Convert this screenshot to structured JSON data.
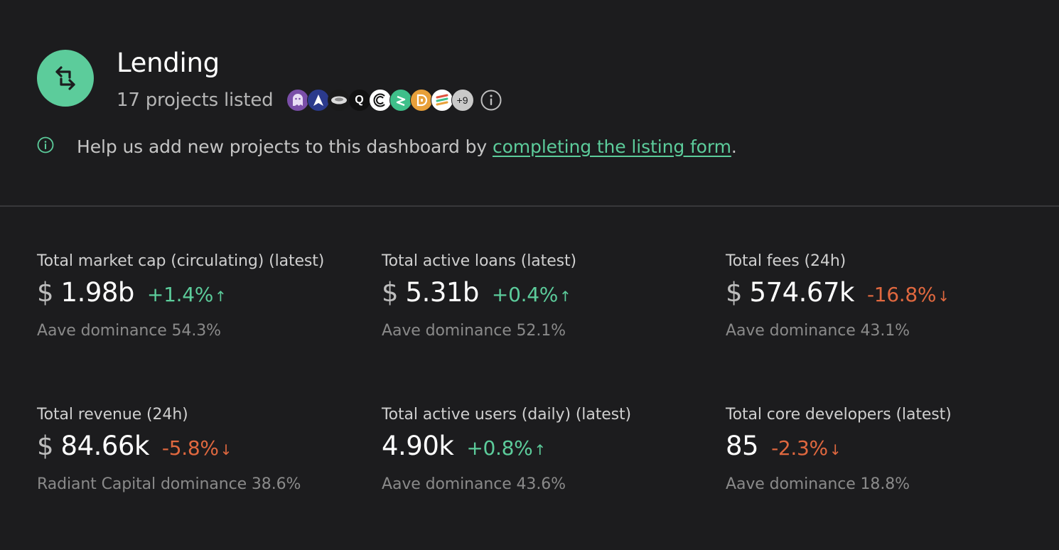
{
  "category": {
    "title": "Lending",
    "project_count": "17 projects listed",
    "more_projects": "+9",
    "accent_color": "#5ccc9b"
  },
  "project_logos": [
    {
      "name": "ghost-logo-icon",
      "bg": "#7a4ea8"
    },
    {
      "name": "arrow-a-logo-icon",
      "bg": "#2b3a8c"
    },
    {
      "name": "disc-logo-icon",
      "bg": "#1a1a1a"
    },
    {
      "name": "q-logo-icon",
      "bg": "#111111"
    },
    {
      "name": "c-rings-logo-icon",
      "bg": "#ffffff"
    },
    {
      "name": "green-s-logo-icon",
      "bg": "#3fbf8a"
    },
    {
      "name": "d-logo-icon",
      "bg": "#e8a03a"
    },
    {
      "name": "stripes-logo-icon",
      "bg": "#ffffff"
    }
  ],
  "help": {
    "text": "Help us add new projects to this dashboard by ",
    "link": "completing the listing form",
    "end": "."
  },
  "metrics": [
    {
      "label": "Total market cap (circulating) (latest)",
      "currency": "$",
      "value": "1.98b",
      "change": "+1.4%",
      "direction": "up",
      "dominance": "Aave dominance 54.3%"
    },
    {
      "label": "Total active loans (latest)",
      "currency": "$",
      "value": "5.31b",
      "change": "+0.4%",
      "direction": "up",
      "dominance": "Aave dominance 52.1%"
    },
    {
      "label": "Total fees (24h)",
      "currency": "$",
      "value": "574.67k",
      "change": "-16.8%",
      "direction": "down",
      "dominance": "Aave dominance 43.1%"
    },
    {
      "label": "Total revenue (24h)",
      "currency": "$",
      "value": "84.66k",
      "change": "-5.8%",
      "direction": "down",
      "dominance": "Radiant Capital dominance 38.6%"
    },
    {
      "label": "Total active users (daily) (latest)",
      "currency": "",
      "value": "4.90k",
      "change": "+0.8%",
      "direction": "up",
      "dominance": "Aave dominance 43.6%"
    },
    {
      "label": "Total core developers (latest)",
      "currency": "",
      "value": "85",
      "change": "-2.3%",
      "direction": "down",
      "dominance": "Aave dominance 18.8%"
    }
  ],
  "arrows": {
    "up": "↑",
    "down": "↓"
  }
}
